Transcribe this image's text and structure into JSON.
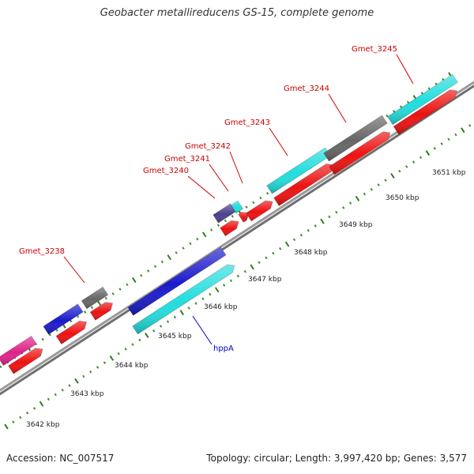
{
  "title": "Geobacter metallireducens GS-15, complete genome",
  "footer": {
    "accession": "Accession: NC_007517",
    "summary": "Topology: circular; Length: 3,997,420 bp; Genes: 3,577"
  },
  "colors": {
    "backbone": "#8a8a8a",
    "tick_major": "#2e7d1e",
    "tick_minor": "#3f8f2a",
    "gene_label": "#cc0000",
    "feature_label": "#0000cc",
    "kbp_label": "#222222"
  },
  "scale_ticks": [
    {
      "label": "3642 kbp",
      "kbp": 3642
    },
    {
      "label": "3643 kbp",
      "kbp": 3643
    },
    {
      "label": "3644 kbp",
      "kbp": 3644
    },
    {
      "label": "3645 kbp",
      "kbp": 3645
    },
    {
      "label": "3646 kbp",
      "kbp": 3646
    },
    {
      "label": "3647 kbp",
      "kbp": 3647
    },
    {
      "label": "3648 kbp",
      "kbp": 3648
    },
    {
      "label": "3649 kbp",
      "kbp": 3649
    },
    {
      "label": "3650 kbp",
      "kbp": 3650
    },
    {
      "label": "3651 kbp",
      "kbp": 3651
    }
  ],
  "genes": [
    {
      "label": "",
      "outer": "#e0228a",
      "inner": "#ee1111"
    },
    {
      "label": "",
      "outer": "#1a1acc",
      "inner": "#ee1111"
    },
    {
      "label": "Gmet_3238",
      "outer": "#666666",
      "inner": "#ee1111"
    },
    {
      "label": "",
      "outer": "#1a1acc",
      "inner": "#22dddd"
    },
    {
      "label": "Gmet_3240",
      "outer": "#4b3f8f",
      "inner": "#ee1111"
    },
    {
      "label": "Gmet_3241",
      "outer": "#22dddd",
      "inner": "#ee1111"
    },
    {
      "label": "Gmet_3242",
      "outer": "",
      "inner": "#ee1111"
    },
    {
      "label": "Gmet_3243",
      "outer": "#22dddd",
      "inner": "#ee1111"
    },
    {
      "label": "Gmet_3244",
      "outer": "#666666",
      "inner": "#ee1111"
    },
    {
      "label": "Gmet_3245",
      "outer": "#22dddd",
      "inner": "#ee1111"
    }
  ],
  "features": [
    {
      "label": "hppA",
      "color": "#22dddd"
    }
  ]
}
